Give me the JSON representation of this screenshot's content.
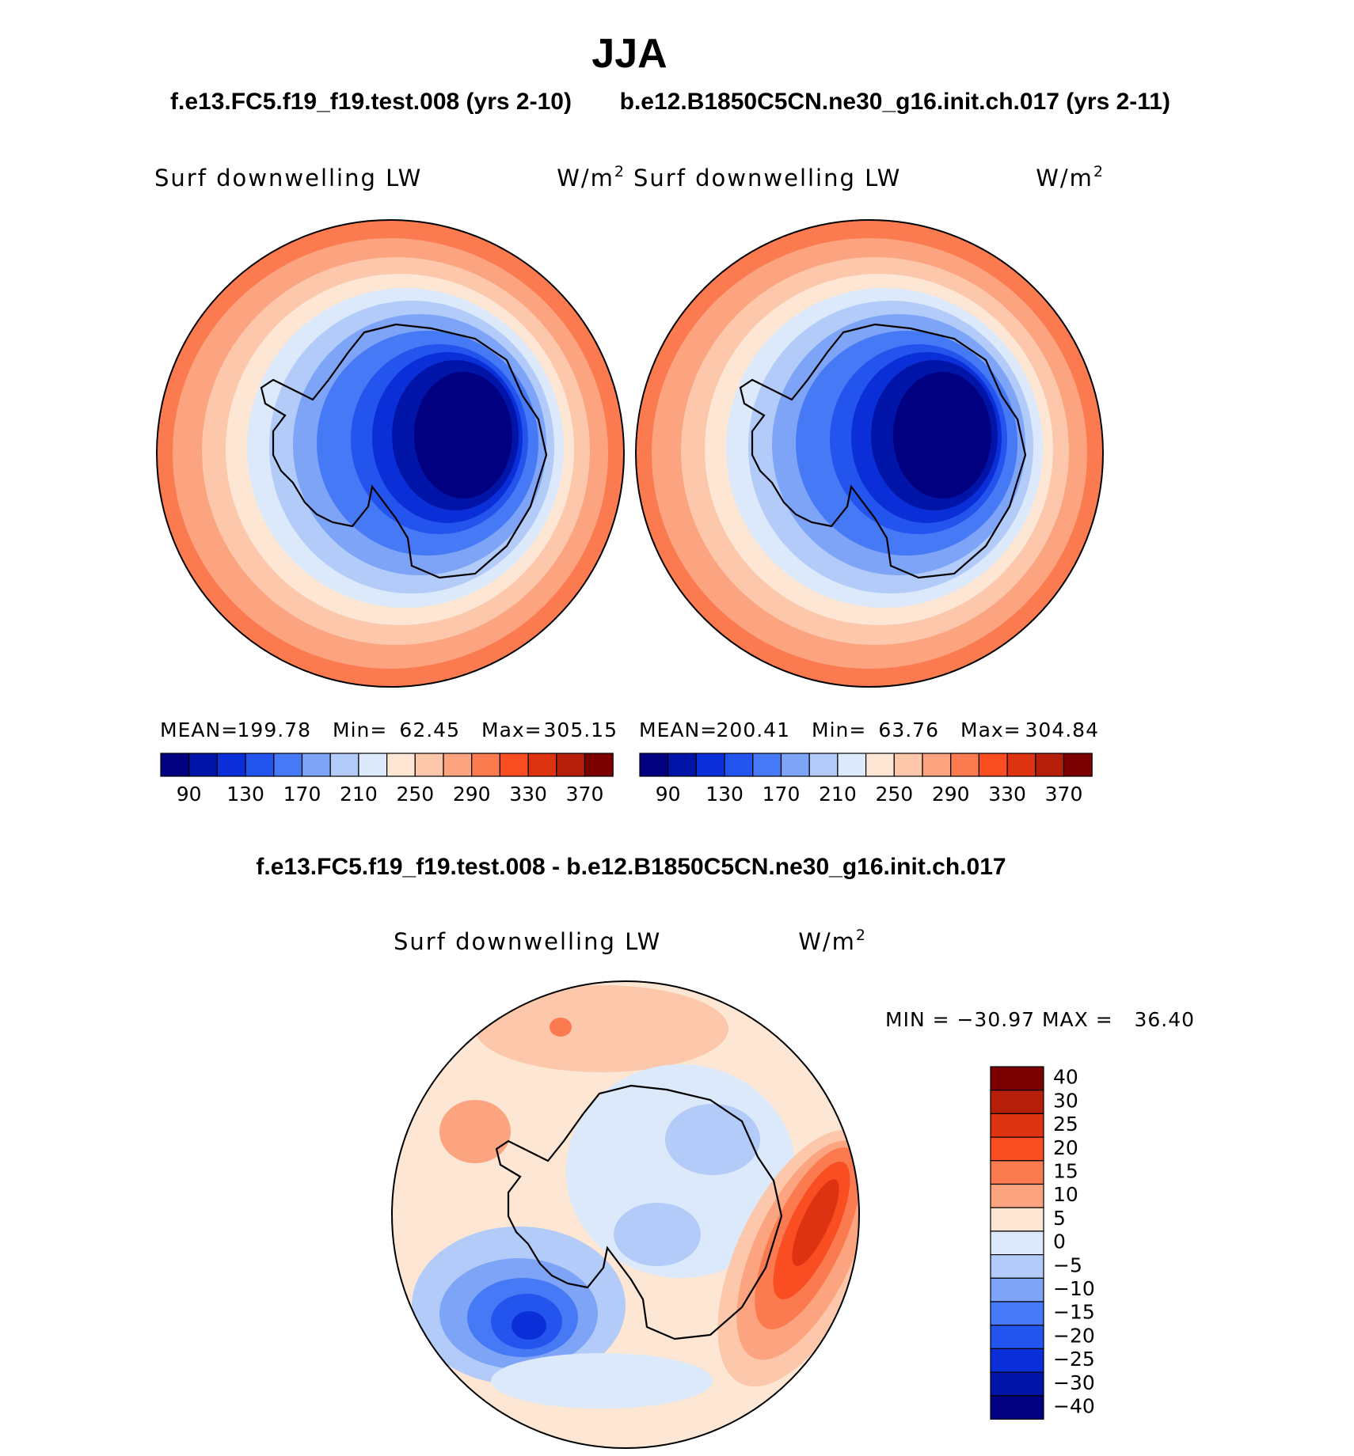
{
  "chart_data": {
    "type": "heatmap",
    "season": "JJA",
    "panels": [
      {
        "case": "f.e13.FC5.f19_f19.test.008 (yrs 2-10)",
        "variable": "Surf downwelling LW",
        "units_base": "W/m",
        "units_sup": "2",
        "stats": {
          "mean_label": "MEAN=",
          "mean": "199.78",
          "min_label": "Min=",
          "min": "62.45",
          "max_label": "Max=",
          "max": "305.15"
        },
        "levels": [
          90,
          110,
          130,
          150,
          170,
          190,
          210,
          230,
          250,
          270,
          290,
          310,
          330,
          350,
          370
        ],
        "tick_labels": [
          "90",
          "130",
          "170",
          "210",
          "250",
          "290",
          "330",
          "370"
        ],
        "projection": "south-polar stereographic"
      },
      {
        "case": "b.e12.B1850C5CN.ne30_g16.init.ch.017 (yrs 2-11)",
        "variable": "Surf downwelling LW",
        "units_base": "W/m",
        "units_sup": "2",
        "stats": {
          "mean_label": "MEAN=",
          "mean": "200.41",
          "min_label": "Min=",
          "min": "63.76",
          "max_label": "Max=",
          "max": "304.84"
        },
        "levels": [
          90,
          110,
          130,
          150,
          170,
          190,
          210,
          230,
          250,
          270,
          290,
          310,
          330,
          350,
          370
        ],
        "tick_labels": [
          "90",
          "130",
          "170",
          "210",
          "250",
          "290",
          "330",
          "370"
        ],
        "projection": "south-polar stereographic"
      },
      {
        "case": "f.e13.FC5.f19_f19.test.008 - b.e12.B1850C5CN.ne30_g16.init.ch.017",
        "variable": "Surf downwelling LW",
        "units_base": "W/m",
        "units_sup": "2",
        "stats_text": "MIN = −30.97 MAX =   36.40",
        "levels": [
          -40,
          -30,
          -25,
          -20,
          -15,
          -10,
          -5,
          0,
          5,
          10,
          15,
          20,
          25,
          30,
          40
        ],
        "tick_labels": [
          "40",
          "30",
          "25",
          "20",
          "15",
          "10",
          "5",
          "0",
          "−5",
          "−10",
          "−15",
          "−20",
          "−25",
          "−30",
          "−40"
        ],
        "projection": "south-polar stereographic"
      }
    ],
    "abs_palette": [
      "#000080",
      "#0014a8",
      "#0a2fd8",
      "#2355ee",
      "#4679f5",
      "#7ea4f7",
      "#b2cbf8",
      "#dce9fa",
      "#fde6d3",
      "#fcc7ab",
      "#fca37f",
      "#fc7a50",
      "#fa4e22",
      "#dd3311",
      "#b51f0a",
      "#7c0000"
    ],
    "diff_palette": [
      "#7c0000",
      "#b51f0a",
      "#dd3311",
      "#fa4e22",
      "#fc7a50",
      "#fca37f",
      "#fde6d3",
      "#dce9fa",
      "#b2cbf8",
      "#7ea4f7",
      "#4679f5",
      "#2355ee",
      "#0a2fd8",
      "#0014a8",
      "#000080"
    ]
  }
}
